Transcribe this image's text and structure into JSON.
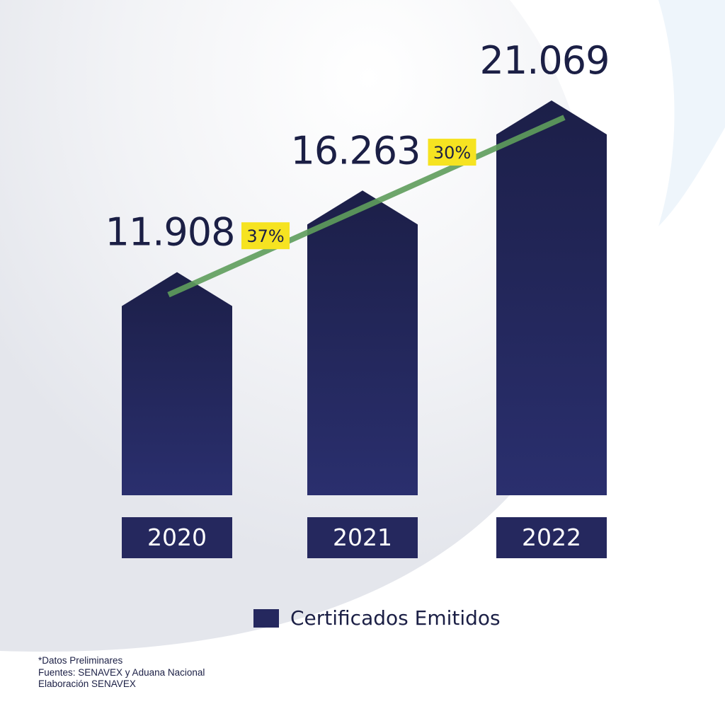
{
  "colors": {
    "bar": "#25285e",
    "bar_top": "#1c1f48",
    "trend_line": "#5f9e5c",
    "badge": "#f6e321",
    "text": "#1b1f45"
  },
  "chart_data": {
    "type": "bar",
    "categories": [
      "2020",
      "2021",
      "2022"
    ],
    "series": [
      {
        "name": "Certificados Emitidos",
        "values": [
          11908,
          16263,
          21069
        ]
      }
    ],
    "value_labels": [
      "11.908",
      "16.263",
      "21.069"
    ],
    "growth_labels": [
      "37%",
      "30%"
    ],
    "trend_line": true,
    "legend": "bottom-center",
    "grid": false
  },
  "legend": {
    "label": "Certificados Emitidos"
  },
  "notes": [
    "*Datos Preliminares",
    "Fuentes: SENAVEX y Aduana Nacional",
    "Elaboración SENAVEX"
  ]
}
